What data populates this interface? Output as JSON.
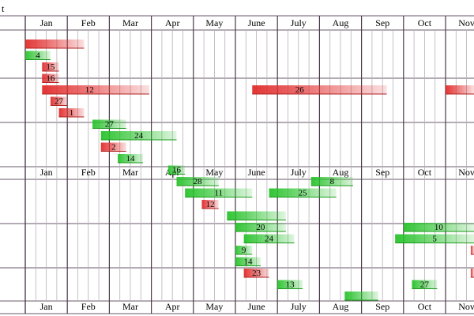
{
  "chart_data": {
    "type": "gantt",
    "corner_text": "t",
    "months": [
      "Jan",
      "Feb",
      "Mar",
      "Apr",
      "May",
      "June",
      "July",
      "Aug",
      "Sep",
      "Oct",
      "Nov"
    ],
    "colors": {
      "green": "#27c22a",
      "red": "#e12b2b"
    },
    "bars": [
      {
        "label": "",
        "color": "red",
        "row": 0.0,
        "start": 0.0,
        "end": 1.4
      },
      {
        "label": "4",
        "color": "green",
        "row": 1.0,
        "start": 0.0,
        "end": 0.6
      },
      {
        "label": "15",
        "color": "red",
        "row": 2.0,
        "start": 0.4,
        "end": 0.8
      },
      {
        "label": "16",
        "color": "red",
        "row": 3.0,
        "start": 0.4,
        "end": 0.8
      },
      {
        "label": "12",
        "color": "red",
        "row": 4.0,
        "start": 0.4,
        "end": 2.95
      },
      {
        "label": "26",
        "color": "red",
        "row": 4.0,
        "start": 5.4,
        "end": 8.6
      },
      {
        "label": "",
        "color": "red",
        "row": 4.0,
        "start": 10.0,
        "end": 10.9
      },
      {
        "label": "27",
        "color": "red",
        "row": 5.0,
        "start": 0.6,
        "end": 1.0
      },
      {
        "label": "1",
        "color": "red",
        "row": 6.0,
        "start": 0.8,
        "end": 1.4
      },
      {
        "label": "27",
        "color": "green",
        "row": 7.0,
        "start": 1.6,
        "end": 2.4
      },
      {
        "label": "24",
        "color": "green",
        "row": 8.0,
        "start": 1.8,
        "end": 3.6
      },
      {
        "label": "2",
        "color": "red",
        "row": 9.0,
        "start": 1.8,
        "end": 2.4
      },
      {
        "label": "14",
        "color": "green",
        "row": 10.0,
        "start": 2.2,
        "end": 2.8
      },
      {
        "label": "16",
        "color": "green",
        "row": 11.0,
        "start": 3.4,
        "end": 3.8
      },
      {
        "label": "28",
        "color": "green",
        "row": 12.0,
        "start": 3.6,
        "end": 4.6
      },
      {
        "label": "8",
        "color": "green",
        "row": 12.0,
        "start": 6.8,
        "end": 7.8
      },
      {
        "label": "11",
        "color": "green",
        "row": 13.0,
        "start": 3.8,
        "end": 5.4
      },
      {
        "label": "25",
        "color": "green",
        "row": 13.0,
        "start": 5.8,
        "end": 7.4
      },
      {
        "label": "12",
        "color": "red",
        "row": 14.0,
        "start": 4.2,
        "end": 4.6
      },
      {
        "label": "",
        "color": "green",
        "row": 15.0,
        "start": 4.8,
        "end": 6.2
      },
      {
        "label": "20",
        "color": "green",
        "row": 16.0,
        "start": 5.0,
        "end": 6.2
      },
      {
        "label": "10",
        "color": "green",
        "row": 16.0,
        "start": 9.0,
        "end": 10.9
      },
      {
        "label": "24",
        "color": "green",
        "row": 17.0,
        "start": 5.2,
        "end": 6.4
      },
      {
        "label": "5",
        "color": "green",
        "row": 17.0,
        "start": 8.8,
        "end": 10.9
      },
      {
        "label": "9",
        "color": "green",
        "row": 18.0,
        "start": 5.0,
        "end": 5.4
      },
      {
        "label": "",
        "color": "red",
        "row": 18.0,
        "start": 10.6,
        "end": 10.9
      },
      {
        "label": "14",
        "color": "green",
        "row": 19.0,
        "start": 5.0,
        "end": 5.6
      },
      {
        "label": "23",
        "color": "red",
        "row": 20.0,
        "start": 5.2,
        "end": 5.8
      },
      {
        "label": "",
        "color": "red",
        "row": 20.0,
        "start": 10.6,
        "end": 10.9
      },
      {
        "label": "13",
        "color": "green",
        "row": 21.0,
        "start": 6.0,
        "end": 6.6
      },
      {
        "label": "27",
        "color": "green",
        "row": 21.0,
        "start": 9.2,
        "end": 9.8
      },
      {
        "label": "",
        "color": "green",
        "row": 22.0,
        "start": 7.6,
        "end": 8.4
      }
    ]
  }
}
